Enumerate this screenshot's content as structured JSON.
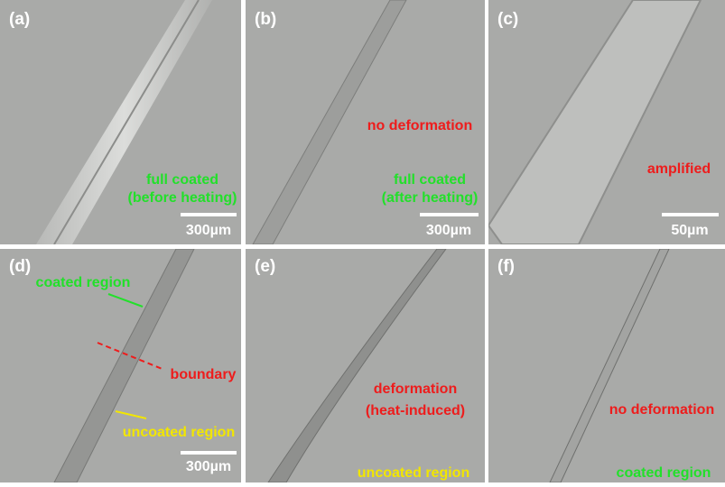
{
  "panels": [
    {
      "label": "(a)",
      "annotations": [
        "full coated",
        "(before heating)"
      ],
      "scale_bar": "300µm"
    },
    {
      "label": "(b)",
      "annotations": [
        "no deformation",
        "full coated",
        "(after heating)"
      ],
      "scale_bar": "300µm"
    },
    {
      "label": "(c)",
      "annotations": [
        "amplified"
      ],
      "scale_bar": "50µm"
    },
    {
      "label": "(d)",
      "annotations": [
        "coated region",
        "boundary",
        "uncoated region"
      ],
      "scale_bar": "300µm"
    },
    {
      "label": "(e)",
      "annotations": [
        "deformation",
        "(heat-induced)",
        "uncoated region"
      ]
    },
    {
      "label": "(f)",
      "annotations": [
        "no deformation",
        "coated region"
      ]
    }
  ]
}
